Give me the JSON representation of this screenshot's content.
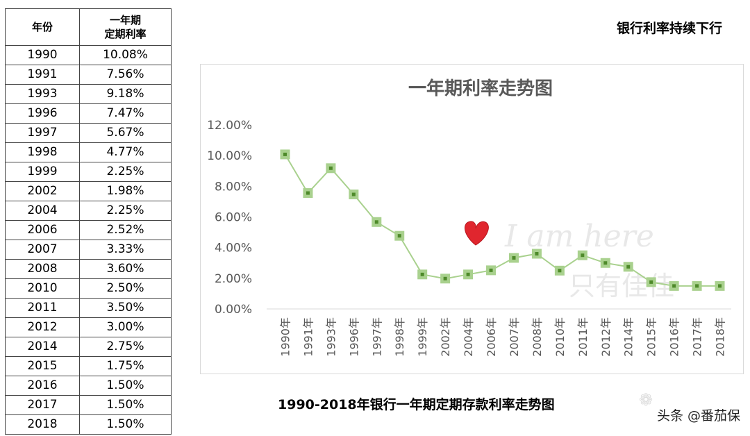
{
  "table": {
    "header_year": "年份",
    "header_rate_line1": "一年期",
    "header_rate_line2": "定期利率",
    "rows": [
      {
        "year": "1990",
        "rate": "10.08%"
      },
      {
        "year": "1991",
        "rate": "7.56%"
      },
      {
        "year": "1993",
        "rate": "9.18%"
      },
      {
        "year": "1996",
        "rate": "7.47%"
      },
      {
        "year": "1997",
        "rate": "5.67%"
      },
      {
        "year": "1998",
        "rate": "4.77%"
      },
      {
        "year": "1999",
        "rate": "2.25%"
      },
      {
        "year": "2002",
        "rate": "1.98%"
      },
      {
        "year": "2004",
        "rate": "2.25%"
      },
      {
        "year": "2006",
        "rate": "2.52%"
      },
      {
        "year": "2007",
        "rate": "3.33%"
      },
      {
        "year": "2008",
        "rate": "3.60%"
      },
      {
        "year": "2010",
        "rate": "2.50%"
      },
      {
        "year": "2011",
        "rate": "3.50%"
      },
      {
        "year": "2012",
        "rate": "3.00%"
      },
      {
        "year": "2014",
        "rate": "2.75%"
      },
      {
        "year": "2015",
        "rate": "1.75%"
      },
      {
        "year": "2016",
        "rate": "1.50%"
      },
      {
        "year": "2017",
        "rate": "1.50%"
      },
      {
        "year": "2018",
        "rate": "1.50%"
      }
    ]
  },
  "top_title": "银行利率持续下行",
  "bottom_caption": "1990-2018年银行一年期定期存款利率走势图",
  "source_tag": "头条 @番茄保",
  "watermark": {
    "line1": "I am here",
    "line2": "只有佳佳"
  },
  "chart_data": {
    "type": "line",
    "title": "一年期利率走势图",
    "categories": [
      "1990年",
      "1991年",
      "1993年",
      "1996年",
      "1997年",
      "1998年",
      "1999年",
      "2002年",
      "2004年",
      "2006年",
      "2007年",
      "2008年",
      "2010年",
      "2011年",
      "2012年",
      "2014年",
      "2015年",
      "2016年",
      "2017年",
      "2018年"
    ],
    "series": [
      {
        "values": [
          10.08,
          7.56,
          9.18,
          7.47,
          5.67,
          4.77,
          2.25,
          1.98,
          2.25,
          2.52,
          3.33,
          3.6,
          2.5,
          3.5,
          3.0,
          2.75,
          1.75,
          1.5,
          1.5,
          1.5
        ]
      }
    ],
    "yticks": [
      "0.00%",
      "2.00%",
      "4.00%",
      "6.00%",
      "8.00%",
      "10.00%",
      "12.00%"
    ],
    "ylim": [
      0,
      12
    ],
    "grid": false,
    "line_color": "#a9d18e",
    "marker_fill": "#a9d18e",
    "marker_center": "#4e8a2a"
  }
}
